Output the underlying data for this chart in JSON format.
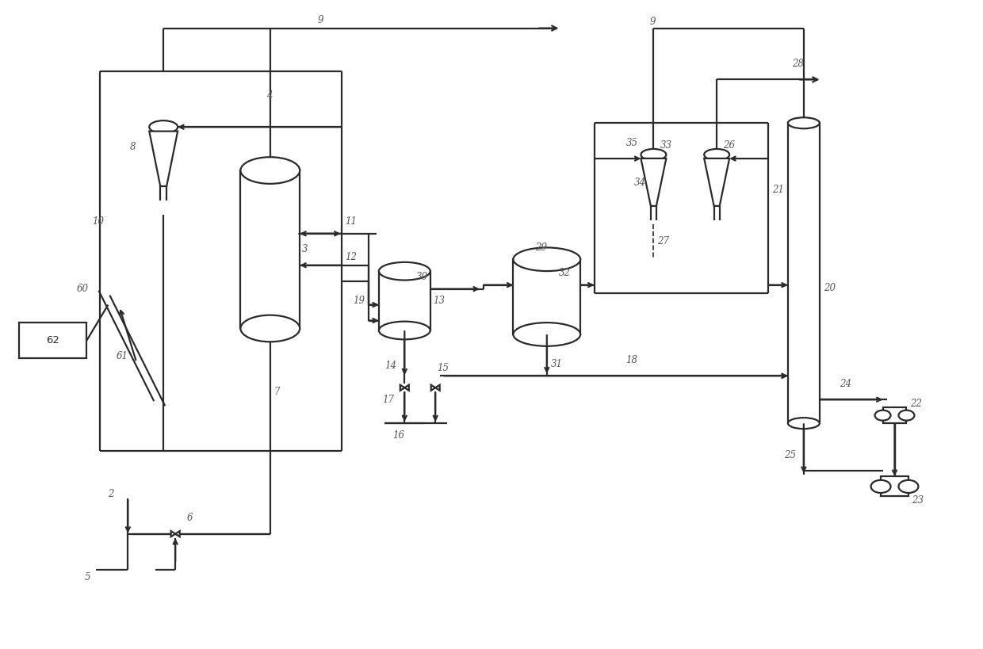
{
  "bg_color": "#ffffff",
  "line_color": "#2a2a2a",
  "lw": 1.6,
  "fig_width": 12.4,
  "fig_height": 8.19,
  "dpi": 100
}
